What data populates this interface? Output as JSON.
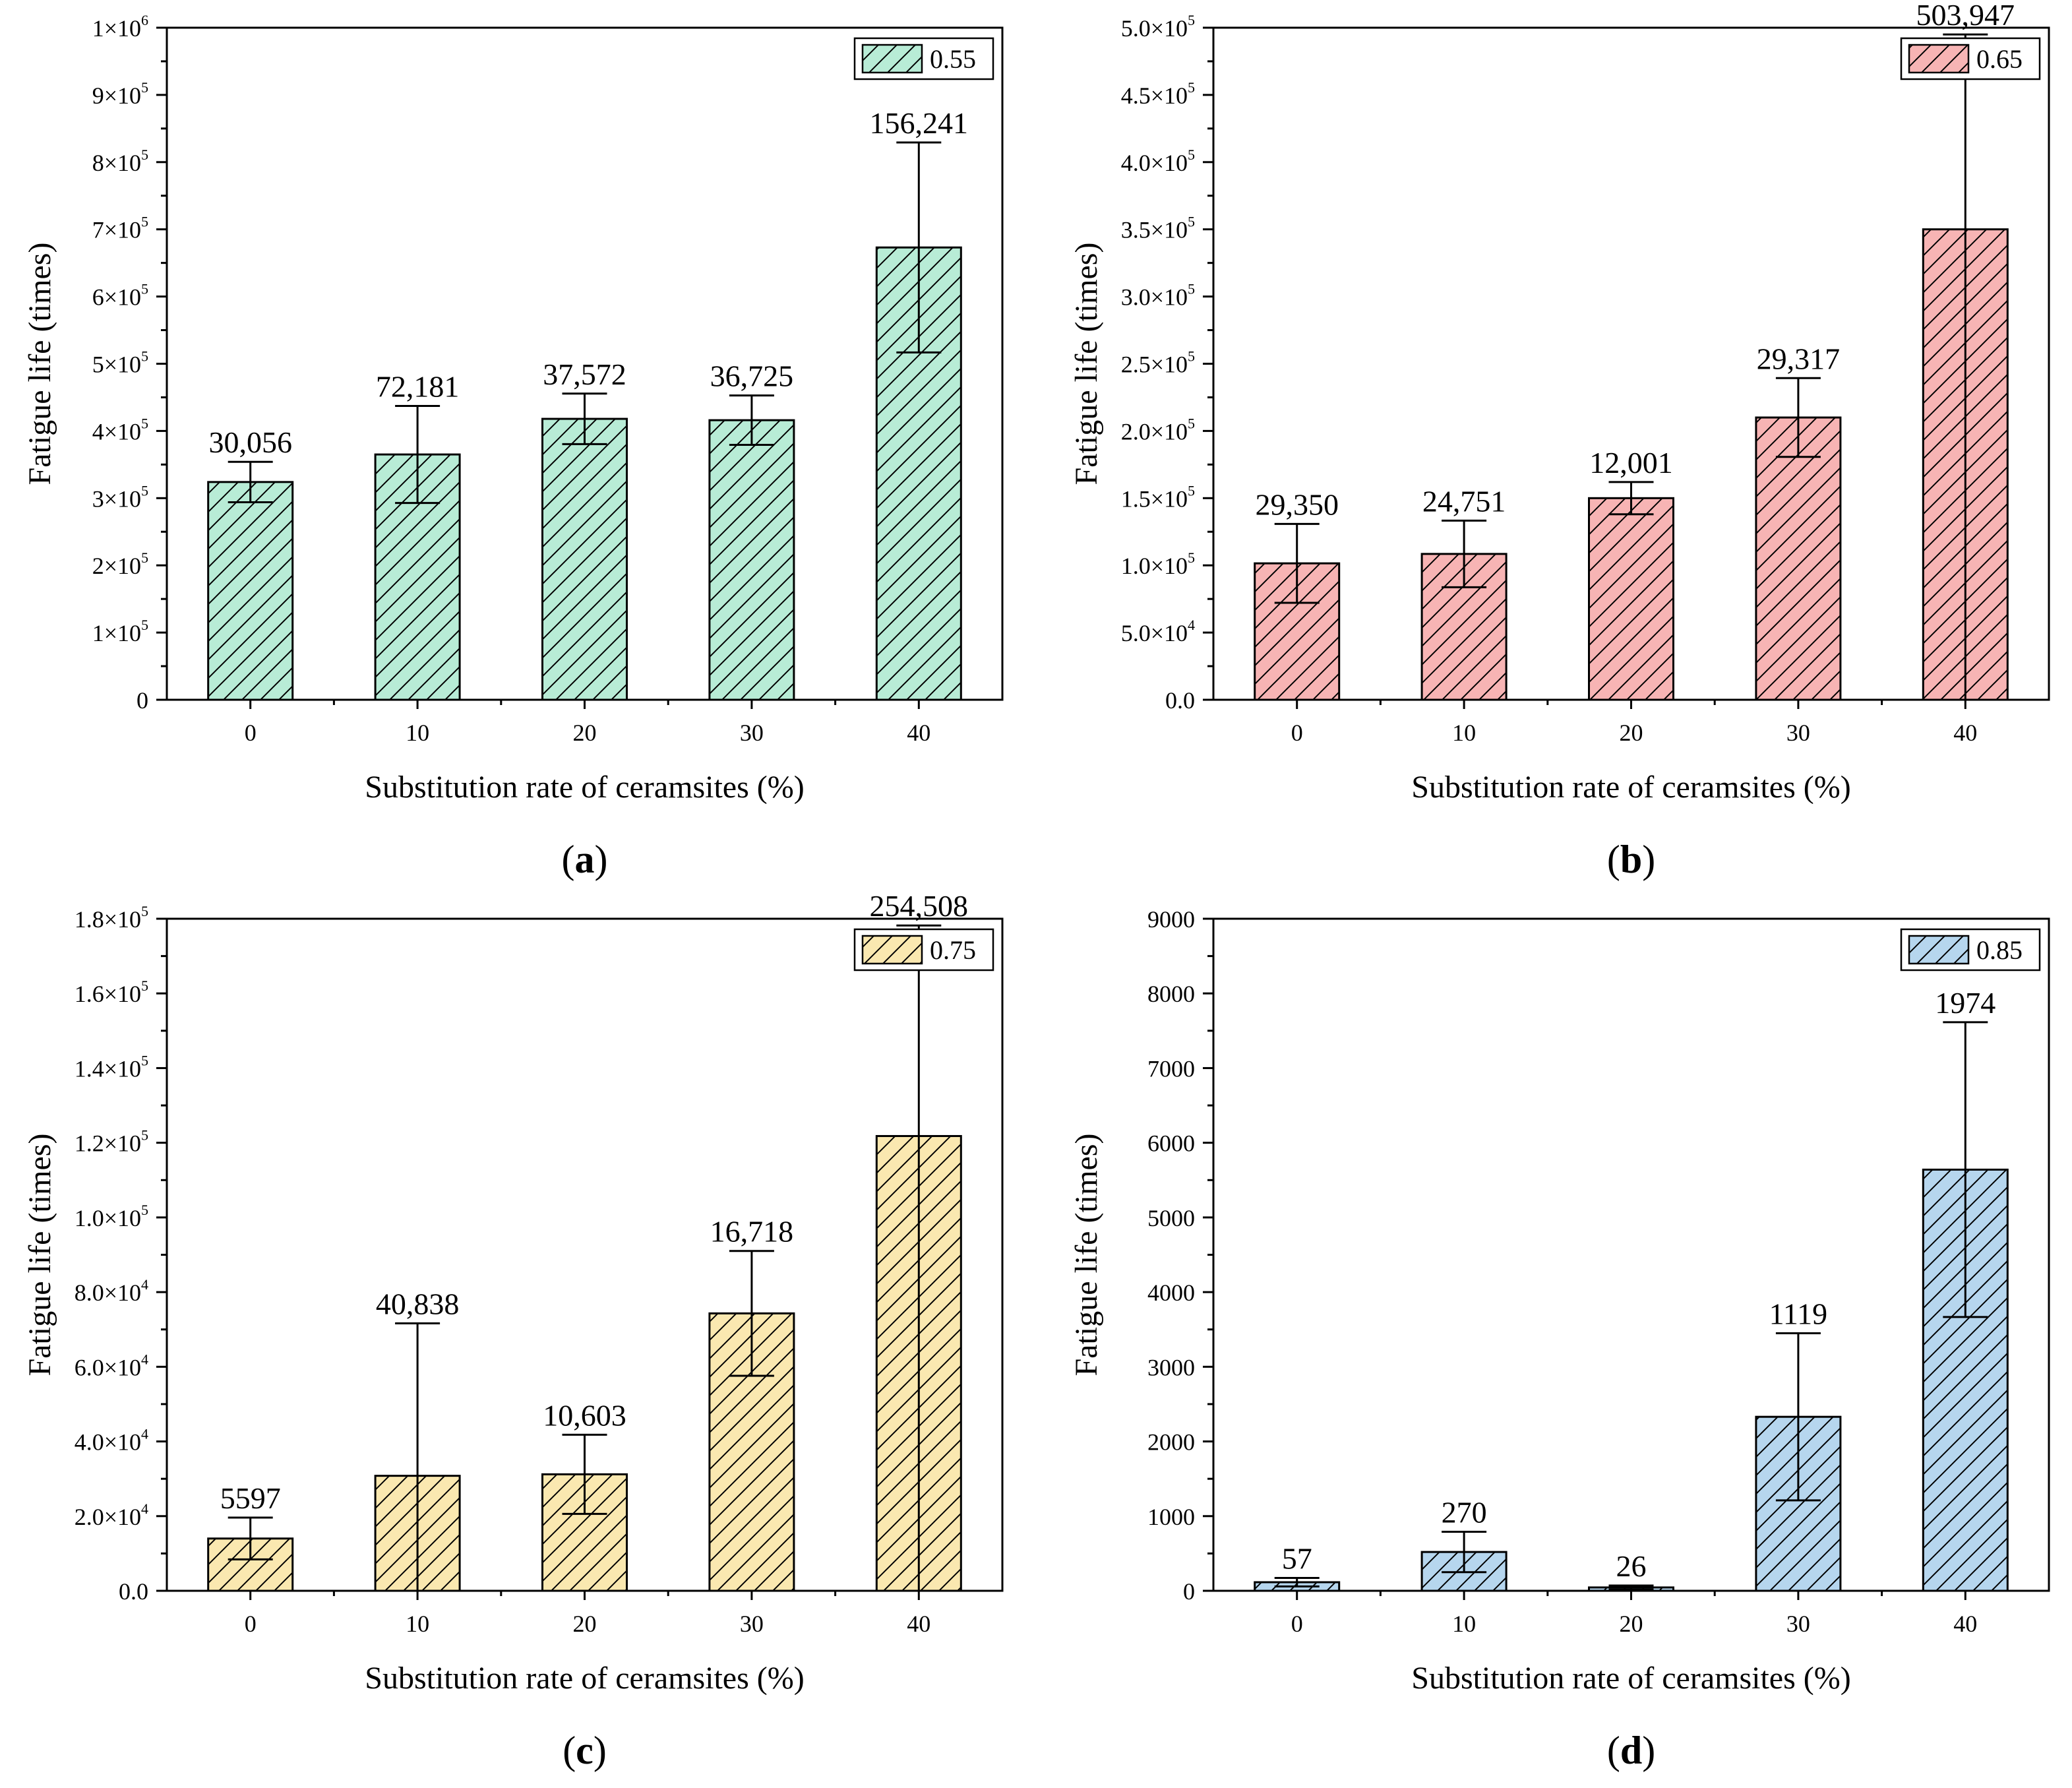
{
  "chart_data": [
    {
      "type": "bar",
      "panel_label": "(a)",
      "legend": "0.55",
      "color": "#b8ecd6",
      "xlabel": "Substitution rate of ceramsites (%)",
      "ylabel": "Fatigue life (times)",
      "categories": [
        "0",
        "10",
        "20",
        "30",
        "40"
      ],
      "values": [
        324000,
        365000,
        418000,
        416000,
        673000
      ],
      "errors": [
        30056,
        72181,
        37572,
        36725,
        156241
      ],
      "error_labels": [
        "30,056",
        "72,181",
        "37,572",
        "36,725",
        "156,241"
      ],
      "ylim": [
        0,
        1000000
      ],
      "yticks": [
        0,
        100000,
        200000,
        300000,
        400000,
        500000,
        600000,
        700000,
        800000,
        900000,
        1000000
      ],
      "ytick_labels": [
        {
          "m": "0",
          "e": ""
        },
        {
          "m": "1×10",
          "e": "5"
        },
        {
          "m": "2×10",
          "e": "5"
        },
        {
          "m": "3×10",
          "e": "5"
        },
        {
          "m": "4×10",
          "e": "5"
        },
        {
          "m": "5×10",
          "e": "5"
        },
        {
          "m": "6×10",
          "e": "5"
        },
        {
          "m": "7×10",
          "e": "5"
        },
        {
          "m": "8×10",
          "e": "5"
        },
        {
          "m": "9×10",
          "e": "5"
        },
        {
          "m": "1×10",
          "e": "6"
        }
      ],
      "legend_position": "top-right",
      "grid": false
    },
    {
      "type": "bar",
      "panel_label": "(b)",
      "legend": "0.65",
      "color": "#f7b4b4",
      "xlabel": "Substitution rate of ceramsites (%)",
      "ylabel": "Fatigue life (times)",
      "categories": [
        "0",
        "10",
        "20",
        "30",
        "40"
      ],
      "values": [
        101500,
        108500,
        150000,
        210000,
        350000
      ],
      "errors": [
        29350,
        24751,
        12001,
        29317,
        503947
      ],
      "error_labels": [
        "29,350",
        "24,751",
        "12,001",
        "29,317",
        "503,947"
      ],
      "ylim": [
        0,
        500000
      ],
      "yticks": [
        0,
        50000,
        100000,
        150000,
        200000,
        250000,
        300000,
        350000,
        400000,
        450000,
        500000
      ],
      "ytick_labels": [
        {
          "m": "0.0",
          "e": ""
        },
        {
          "m": "5.0×10",
          "e": "4"
        },
        {
          "m": "1.0×10",
          "e": "5"
        },
        {
          "m": "1.5×10",
          "e": "5"
        },
        {
          "m": "2.0×10",
          "e": "5"
        },
        {
          "m": "2.5×10",
          "e": "5"
        },
        {
          "m": "3.0×10",
          "e": "5"
        },
        {
          "m": "3.5×10",
          "e": "5"
        },
        {
          "m": "4.0×10",
          "e": "5"
        },
        {
          "m": "4.5×10",
          "e": "5"
        },
        {
          "m": "5.0×10",
          "e": "5"
        }
      ],
      "legend_position": "top-right",
      "grid": false
    },
    {
      "type": "bar",
      "panel_label": "(c)",
      "legend": "0.75",
      "color": "#fae8b0",
      "xlabel": "Substitution rate of ceramsites (%)",
      "ylabel": "Fatigue life (times)",
      "categories": [
        "0",
        "10",
        "20",
        "30",
        "40"
      ],
      "values": [
        14000,
        30800,
        31200,
        74300,
        121800
      ],
      "errors": [
        5597,
        40838,
        10603,
        16718,
        254508
      ],
      "error_labels": [
        "5597",
        "40,838",
        "10,603",
        "16,718",
        "254,508"
      ],
      "ylim": [
        0,
        180000
      ],
      "yticks": [
        0,
        20000,
        40000,
        60000,
        80000,
        100000,
        120000,
        140000,
        160000,
        180000
      ],
      "ytick_labels": [
        {
          "m": "0.0",
          "e": ""
        },
        {
          "m": "2.0×10",
          "e": "4"
        },
        {
          "m": "4.0×10",
          "e": "4"
        },
        {
          "m": "6.0×10",
          "e": "4"
        },
        {
          "m": "8.0×10",
          "e": "4"
        },
        {
          "m": "1.0×10",
          "e": "5"
        },
        {
          "m": "1.2×10",
          "e": "5"
        },
        {
          "m": "1.4×10",
          "e": "5"
        },
        {
          "m": "1.6×10",
          "e": "5"
        },
        {
          "m": "1.8×10",
          "e": "5"
        }
      ],
      "legend_position": "top-right",
      "grid": false
    },
    {
      "type": "bar",
      "panel_label": "(d)",
      "legend": "0.85",
      "color": "#b6d6ee",
      "xlabel": "Substitution rate of ceramsites (%)",
      "ylabel": "Fatigue life (times)",
      "categories": [
        "0",
        "10",
        "20",
        "30",
        "40"
      ],
      "values": [
        115,
        520,
        45,
        2330,
        5640
      ],
      "errors": [
        57,
        270,
        26,
        1119,
        1974
      ],
      "error_labels": [
        "57",
        "270",
        "26",
        "1119",
        "1974"
      ],
      "ylim": [
        0,
        9000
      ],
      "yticks": [
        0,
        1000,
        2000,
        3000,
        4000,
        5000,
        6000,
        7000,
        8000,
        9000
      ],
      "ytick_labels": [
        {
          "m": "0",
          "e": ""
        },
        {
          "m": "1000",
          "e": ""
        },
        {
          "m": "2000",
          "e": ""
        },
        {
          "m": "3000",
          "e": ""
        },
        {
          "m": "4000",
          "e": ""
        },
        {
          "m": "5000",
          "e": ""
        },
        {
          "m": "6000",
          "e": ""
        },
        {
          "m": "7000",
          "e": ""
        },
        {
          "m": "8000",
          "e": ""
        },
        {
          "m": "9000",
          "e": ""
        }
      ],
      "legend_position": "top-right",
      "grid": false
    }
  ]
}
